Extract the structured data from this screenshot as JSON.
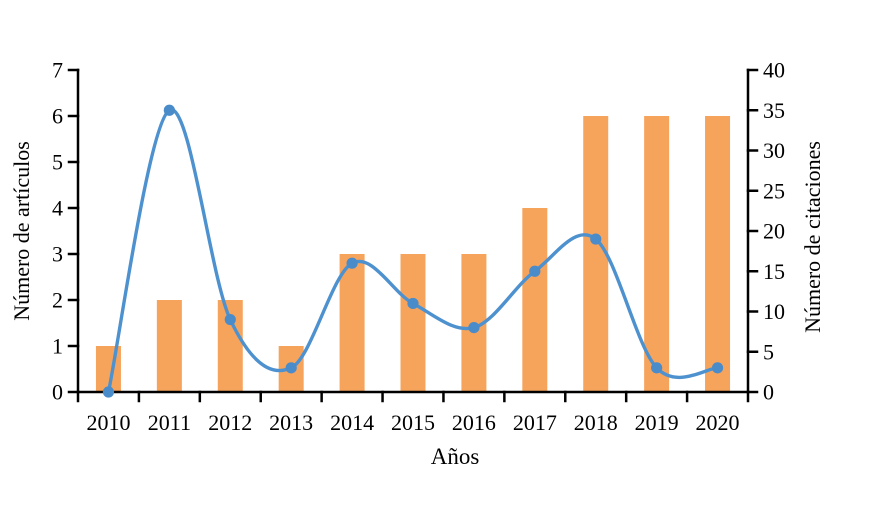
{
  "chart_data": {
    "type": "combo-bar-line",
    "categories": [
      "2010",
      "2011",
      "2012",
      "2013",
      "2014",
      "2015",
      "2016",
      "2017",
      "2018",
      "2019",
      "2020"
    ],
    "series": [
      {
        "name": "Número de artículos",
        "type": "bar",
        "axis": "left",
        "color": "#F6A45C",
        "values": [
          1,
          2,
          2,
          1,
          3,
          3,
          3,
          4,
          6,
          6,
          6
        ]
      },
      {
        "name": "Número de citaciones",
        "type": "line",
        "axis": "right",
        "color": "#4E91CF",
        "marker_color": "#4A8BC9",
        "smooth": true,
        "values": [
          0,
          35,
          9,
          3,
          16,
          11,
          8,
          15,
          19,
          3,
          3
        ]
      }
    ],
    "xlabel": "Años",
    "left_axis": {
      "label": "Número de artículos",
      "min": 0,
      "max": 7,
      "step": 1,
      "ticks": [
        0,
        1,
        2,
        3,
        4,
        5,
        6,
        7
      ]
    },
    "right_axis": {
      "label": "Número de citaciones",
      "min": 0,
      "max": 40,
      "step": 5,
      "ticks": [
        0,
        5,
        10,
        15,
        20,
        25,
        30,
        35,
        40
      ]
    },
    "legend": "none",
    "grid": "off",
    "axis_color": "#000000"
  }
}
